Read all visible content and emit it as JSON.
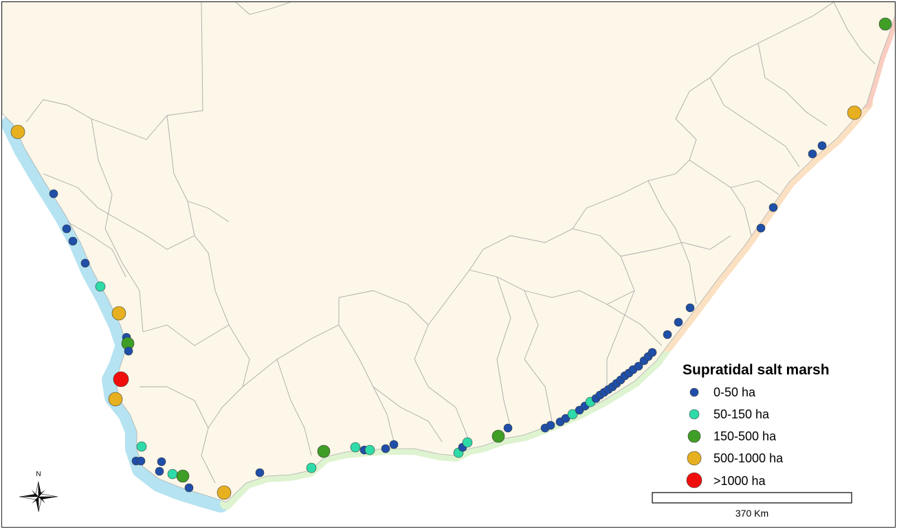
{
  "legend": {
    "title": "Supratidal salt marsh",
    "classes": [
      {
        "label": "0-50 ha",
        "color": "#1f4fa8"
      },
      {
        "label": "50-150 ha",
        "color": "#2edba8"
      },
      {
        "label": "150-500 ha",
        "color": "#3f9e25"
      },
      {
        "label": "500-1000 ha",
        "color": "#e6b021"
      },
      {
        "label": ">1000 ha",
        "color": "#f20d0d"
      }
    ]
  },
  "scale_bar": {
    "label": "370 Km"
  },
  "north_arrow": {
    "label": "N"
  },
  "colors": {
    "land": "#fcf7e8",
    "boundary": "#a9a9a9",
    "sea_west": "#b5e3f2",
    "sea_south": "#def3d0",
    "sea_east": "#fbe1c2",
    "sea_northeast": "#f9cdbf"
  }
}
